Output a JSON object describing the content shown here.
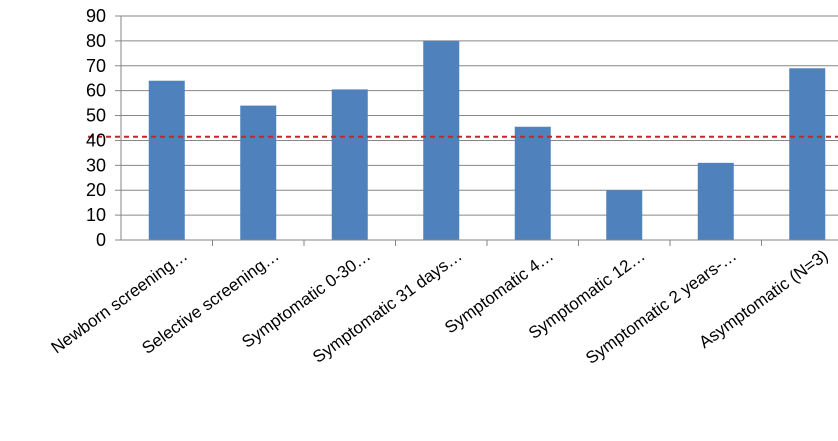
{
  "chart_data": {
    "type": "bar",
    "categories": [
      "Newborn screening…",
      "Selective screening…",
      "Symptomatic 0-30…",
      "Symptomatic 31 days…",
      "Symptomatic 4…",
      "Symptomatic 12…",
      "Symptomatic 2 years-…",
      "Asymptomatic (N=3)"
    ],
    "values": [
      64,
      54,
      60.5,
      80,
      45.5,
      20,
      31,
      69
    ],
    "reference_line": 41.5,
    "ylim": [
      0,
      90
    ],
    "yticks": [
      "0",
      "10",
      "20",
      "30",
      "40",
      "50",
      "60",
      "70",
      "80",
      "90"
    ],
    "grid": true,
    "colors": {
      "bar": "#4f81bd",
      "grid": "#868686",
      "reference": "#c0282d"
    }
  }
}
